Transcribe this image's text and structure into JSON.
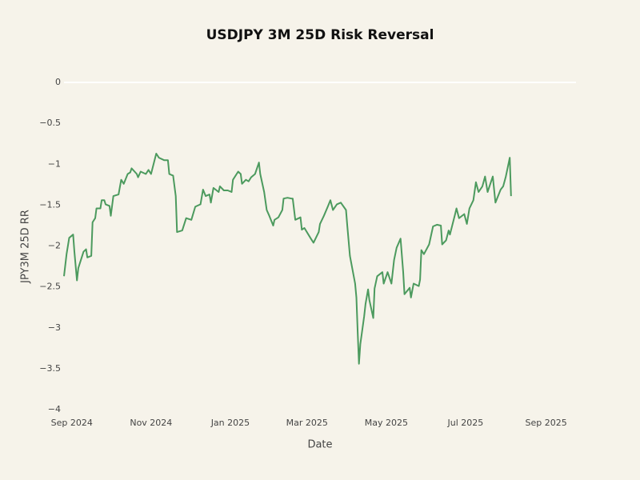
{
  "chart_data": {
    "type": "line",
    "title": "USDJPY 3M 25D Risk Reversal",
    "x_label": "Date",
    "y_label": "JPY3M 25D RR",
    "color": "#4c9a5e",
    "grid": true,
    "xlim": [
      "2024-08-26",
      "2025-09-24"
    ],
    "xticks": [
      {
        "value": "2024-09-01",
        "label": "Sep 2024"
      },
      {
        "value": "2024-11-01",
        "label": "Nov 2024"
      },
      {
        "value": "2025-01-01",
        "label": "Jan 2025"
      },
      {
        "value": "2025-03-01",
        "label": "Mar 2025"
      },
      {
        "value": "2025-05-01",
        "label": "May 2025"
      },
      {
        "value": "2025-07-01",
        "label": "Jul 2025"
      },
      {
        "value": "2025-09-01",
        "label": "Sep 2025"
      }
    ],
    "ylim": [
      -4,
      0.1
    ],
    "yticks": [
      {
        "value": -4,
        "label": "−4"
      },
      {
        "value": -3.5,
        "label": "−3.5"
      },
      {
        "value": -3,
        "label": "−3"
      },
      {
        "value": -2.5,
        "label": "−2.5"
      },
      {
        "value": -2,
        "label": "−2"
      },
      {
        "value": -1.5,
        "label": "−1.5"
      },
      {
        "value": -1,
        "label": "−1"
      },
      {
        "value": -0.5,
        "label": "−0.5"
      },
      0
    ],
    "x": [
      "2024-08-26",
      "2024-08-28",
      "2024-08-30",
      "2024-09-02",
      "2024-09-03",
      "2024-09-05",
      "2024-09-06",
      "2024-09-10",
      "2024-09-12",
      "2024-09-13",
      "2024-09-16",
      "2024-09-17",
      "2024-09-19",
      "2024-09-20",
      "2024-09-23",
      "2024-09-24",
      "2024-09-26",
      "2024-09-27",
      "2024-09-30",
      "2024-10-01",
      "2024-10-03",
      "2024-10-07",
      "2024-10-09",
      "2024-10-11",
      "2024-10-14",
      "2024-10-16",
      "2024-10-17",
      "2024-10-21",
      "2024-10-22",
      "2024-10-24",
      "2024-10-28",
      "2024-10-30",
      "2024-11-01",
      "2024-11-05",
      "2024-11-07",
      "2024-11-11",
      "2024-11-14",
      "2024-11-15",
      "2024-11-18",
      "2024-11-20",
      "2024-11-21",
      "2024-11-25",
      "2024-11-28",
      "2024-12-02",
      "2024-12-05",
      "2024-12-09",
      "2024-12-11",
      "2024-12-13",
      "2024-12-16",
      "2024-12-17",
      "2024-12-19",
      "2024-12-23",
      "2024-12-24",
      "2024-12-27",
      "2024-12-30",
      "2025-01-02",
      "2025-01-03",
      "2025-01-07",
      "2025-01-09",
      "2025-01-10",
      "2025-01-13",
      "2025-01-15",
      "2025-01-17",
      "2025-01-20",
      "2025-01-23",
      "2025-01-24",
      "2025-01-27",
      "2025-01-29",
      "2025-01-31",
      "2025-02-03",
      "2025-02-04",
      "2025-02-07",
      "2025-02-10",
      "2025-02-11",
      "2025-02-14",
      "2025-02-17",
      "2025-02-18",
      "2025-02-20",
      "2025-02-24",
      "2025-02-25",
      "2025-02-27",
      "2025-03-04",
      "2025-03-06",
      "2025-03-10",
      "2025-03-11",
      "2025-03-14",
      "2025-03-17",
      "2025-03-19",
      "2025-03-21",
      "2025-03-24",
      "2025-03-27",
      "2025-03-31",
      "2025-04-01",
      "2025-04-03",
      "2025-04-07",
      "2025-04-08",
      "2025-04-09",
      "2025-04-10",
      "2025-04-11",
      "2025-04-14",
      "2025-04-15",
      "2025-04-17",
      "2025-04-18",
      "2025-04-21",
      "2025-04-22",
      "2025-04-24",
      "2025-04-28",
      "2025-04-29",
      "2025-05-01",
      "2025-05-02",
      "2025-05-05",
      "2025-05-07",
      "2025-05-09",
      "2025-05-12",
      "2025-05-14",
      "2025-05-15",
      "2025-05-19",
      "2025-05-20",
      "2025-05-22",
      "2025-05-26",
      "2025-05-27",
      "2025-05-28",
      "2025-05-30",
      "2025-06-03",
      "2025-06-06",
      "2025-06-09",
      "2025-06-12",
      "2025-06-13",
      "2025-06-16",
      "2025-06-18",
      "2025-06-19",
      "2025-06-23",
      "2025-06-24",
      "2025-06-26",
      "2025-06-30",
      "2025-07-02",
      "2025-07-04",
      "2025-07-07",
      "2025-07-09",
      "2025-07-11",
      "2025-07-14",
      "2025-07-16",
      "2025-07-18",
      "2025-07-22",
      "2025-07-24",
      "2025-07-28",
      "2025-07-30",
      "2025-08-01",
      "2025-08-04",
      "2025-08-05"
    ],
    "values": [
      -2.37,
      -2.1,
      -1.9,
      -1.86,
      -2.07,
      -2.42,
      -2.27,
      -2.07,
      -2.04,
      -2.14,
      -2.12,
      -1.71,
      -1.66,
      -1.54,
      -1.54,
      -1.44,
      -1.44,
      -1.49,
      -1.51,
      -1.63,
      -1.39,
      -1.37,
      -1.19,
      -1.24,
      -1.12,
      -1.1,
      -1.05,
      -1.12,
      -1.16,
      -1.09,
      -1.12,
      -1.07,
      -1.12,
      -0.87,
      -0.92,
      -0.95,
      -0.95,
      -1.12,
      -1.14,
      -1.39,
      -1.83,
      -1.81,
      -1.66,
      -1.68,
      -1.52,
      -1.49,
      -1.31,
      -1.39,
      -1.37,
      -1.47,
      -1.29,
      -1.34,
      -1.27,
      -1.32,
      -1.32,
      -1.34,
      -1.19,
      -1.09,
      -1.12,
      -1.24,
      -1.19,
      -1.21,
      -1.16,
      -1.12,
      -0.98,
      -1.12,
      -1.34,
      -1.56,
      -1.63,
      -1.75,
      -1.68,
      -1.65,
      -1.56,
      -1.42,
      -1.41,
      -1.42,
      -1.42,
      -1.68,
      -1.65,
      -1.8,
      -1.78,
      -1.91,
      -1.96,
      -1.83,
      -1.73,
      -1.63,
      -1.52,
      -1.44,
      -1.56,
      -1.49,
      -1.47,
      -1.56,
      -1.75,
      -2.12,
      -2.46,
      -2.63,
      -3.05,
      -3.44,
      -3.2,
      -2.86,
      -2.71,
      -2.53,
      -2.66,
      -2.88,
      -2.52,
      -2.37,
      -2.32,
      -2.46,
      -2.37,
      -2.32,
      -2.46,
      -2.17,
      -2.02,
      -1.91,
      -2.32,
      -2.59,
      -2.51,
      -2.63,
      -2.46,
      -2.49,
      -2.41,
      -2.05,
      -2.1,
      -1.98,
      -1.76,
      -1.74,
      -1.75,
      -1.98,
      -1.93,
      -1.81,
      -1.86,
      -1.61,
      -1.54,
      -1.66,
      -1.61,
      -1.73,
      -1.54,
      -1.44,
      -1.22,
      -1.34,
      -1.27,
      -1.15,
      -1.34,
      -1.15,
      -1.47,
      -1.31,
      -1.27,
      -1.15,
      -0.92,
      -1.39
    ]
  }
}
